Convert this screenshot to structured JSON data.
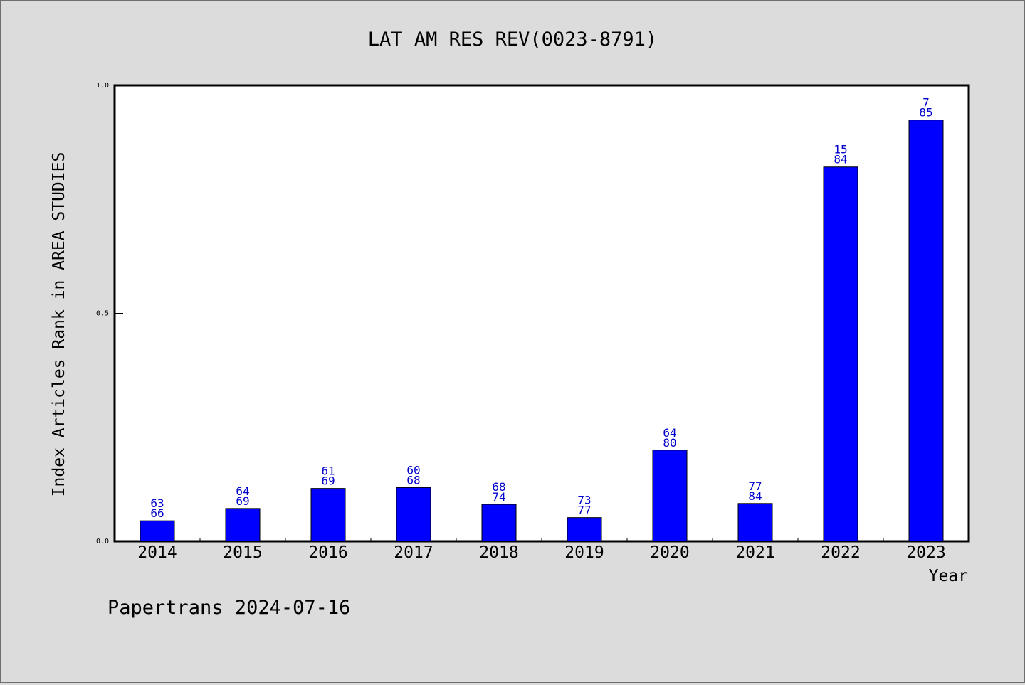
{
  "chart_data": {
    "type": "bar",
    "title": "LAT AM RES REV(0023-8791)",
    "xlabel": "Year",
    "ylabel": "Index Articles Rank in AREA STUDIES",
    "categories": [
      "2014",
      "2015",
      "2016",
      "2017",
      "2018",
      "2019",
      "2020",
      "2021",
      "2022",
      "2023"
    ],
    "values": [
      0.045,
      0.072,
      0.116,
      0.118,
      0.081,
      0.052,
      0.2,
      0.083,
      0.821,
      0.924
    ],
    "label_top": [
      "63",
      "64",
      "61",
      "60",
      "68",
      "73",
      "64",
      "77",
      "15",
      "7"
    ],
    "label_bottom": [
      "66",
      "69",
      "69",
      "68",
      "74",
      "77",
      "80",
      "84",
      "84",
      "85"
    ],
    "yticks": [
      "0.0",
      "0.5",
      "1.0"
    ],
    "ylim": [
      0,
      1
    ],
    "grid": false,
    "bar_color": "#0000ff",
    "label_color": "#0000cc"
  },
  "footer": "Papertrans 2024-07-16"
}
